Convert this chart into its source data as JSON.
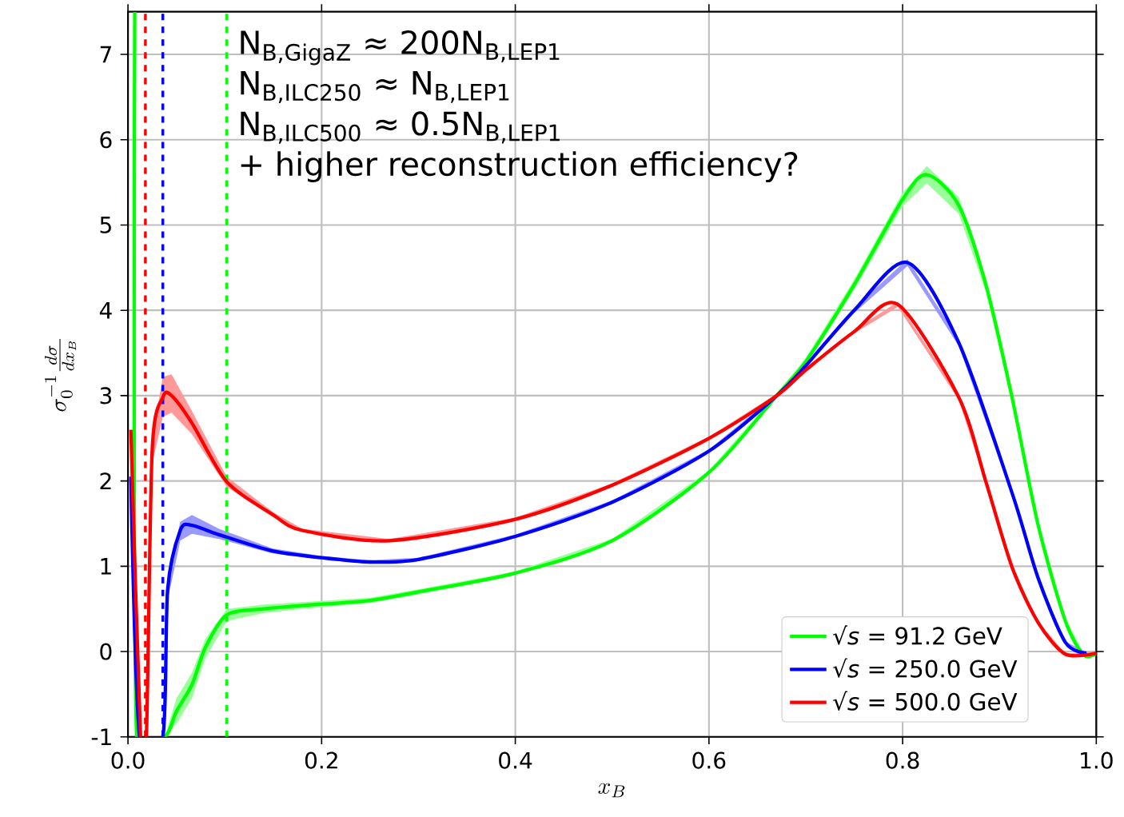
{
  "chart_data": {
    "type": "line",
    "xlabel": "x_B",
    "ylabel": "\\sigma_0^{-1}\\frac{d\\sigma}{dx_B}",
    "xlim": [
      0,
      1
    ],
    "ylim": [
      -1,
      7.5
    ],
    "xticks": [
      {
        "value": 0,
        "label": "0.0"
      },
      0.2,
      0.4,
      0.6,
      0.8,
      {
        "value": 1,
        "label": "1.0"
      }
    ],
    "yticks": [
      -1,
      0,
      1,
      2,
      3,
      4,
      5,
      6,
      7
    ],
    "grid": true,
    "legend": "bottom right",
    "line_style": "solid",
    "marker": "none",
    "annotations": [
      "N$_{B,GigaZ}$ ≈ 200N$_{B,LEP1}$",
      "N$_{B,ILC250}$ ≈ N$_{B,LEP1}$",
      "N$_{B,ILC500}$ ≈ 0.5N$_{B,LEP1}$",
      "+ higher reconstruction efficiency?"
    ],
    "ref_lines": [
      {
        "axis": "x",
        "value": 0.018,
        "color": "#ff0000",
        "line_style": "dashed"
      },
      {
        "axis": "x",
        "value": 0.036,
        "color": "#0000ff",
        "line_style": "dashed"
      },
      {
        "axis": "x",
        "value": 0.102,
        "color": "#00ff00",
        "line_style": "dashed"
      }
    ],
    "series": [
      {
        "name": "√*s* = 91.2 GeV",
        "color": "#00ff00",
        "x": [
          0.007,
          0.009,
          0.038,
          0.05,
          0.066,
          0.08,
          0.102,
          0.14,
          0.18,
          0.25,
          0.3,
          0.4,
          0.5,
          0.6,
          0.67,
          0.7,
          0.75,
          0.8,
          0.825,
          0.858,
          0.886,
          0.913,
          0.94,
          0.968,
          0.987,
          1.0
        ],
        "values": [
          7.5,
          -1,
          -1,
          -0.7,
          -0.39,
          0.05,
          0.43,
          0.5,
          0.54,
          0.6,
          0.7,
          0.92,
          1.3,
          2.1,
          3.0,
          3.4,
          4.3,
          5.3,
          5.59,
          5.23,
          4.3,
          2.98,
          1.48,
          0.36,
          -0.04,
          -0.02
        ],
        "lower": [
          7.5,
          -1,
          -1,
          -0.85,
          -0.55,
          -0.08,
          0.36,
          0.45,
          0.5,
          0.57,
          0.67,
          0.9,
          1.28,
          2.08,
          2.97,
          3.36,
          4.24,
          5.22,
          5.49,
          5.13,
          4.22,
          2.92,
          1.44,
          0.33,
          -0.06,
          -0.03
        ],
        "upper": [
          7.5,
          -1,
          -1,
          -0.55,
          -0.25,
          0.15,
          0.5,
          0.55,
          0.58,
          0.63,
          0.73,
          0.94,
          1.32,
          2.12,
          3.03,
          3.44,
          4.36,
          5.38,
          5.69,
          5.33,
          4.38,
          3.04,
          1.52,
          0.39,
          -0.02,
          -0.01
        ]
      },
      {
        "name": "√*s* = 250.0 GeV",
        "color": "#0000ff",
        "x": [
          0.003,
          0.012,
          0.036,
          0.041,
          0.054,
          0.066,
          0.094,
          0.149,
          0.2,
          0.25,
          0.3,
          0.4,
          0.5,
          0.6,
          0.67,
          0.7,
          0.75,
          0.805,
          0.858,
          0.913,
          0.94,
          0.968,
          0.99
        ],
        "values": [
          2.05,
          -1,
          -1,
          0.73,
          1.42,
          1.48,
          1.37,
          1.18,
          1.1,
          1.05,
          1.08,
          1.35,
          1.75,
          2.35,
          3.0,
          3.35,
          4.0,
          4.56,
          3.62,
          1.86,
          0.86,
          0.11,
          -0.02
        ],
        "lower": [
          2.05,
          -1,
          -1,
          0.6,
          1.3,
          1.38,
          1.32,
          1.15,
          1.08,
          1.03,
          1.06,
          1.33,
          1.73,
          2.33,
          2.98,
          3.33,
          3.97,
          4.52,
          3.58,
          1.83,
          0.84,
          0.1,
          -0.03
        ],
        "upper": [
          2.05,
          -1,
          -1,
          0.86,
          1.52,
          1.6,
          1.44,
          1.21,
          1.12,
          1.07,
          1.1,
          1.37,
          1.77,
          2.37,
          3.02,
          3.37,
          4.03,
          4.6,
          3.66,
          1.89,
          0.88,
          0.12,
          -0.01
        ]
      },
      {
        "name": "√*s* = 500.0 GeV",
        "color": "#ff0000",
        "x": [
          0.003,
          0.013,
          0.019,
          0.025,
          0.036,
          0.045,
          0.066,
          0.102,
          0.149,
          0.18,
          0.27,
          0.4,
          0.5,
          0.6,
          0.67,
          0.7,
          0.75,
          0.795,
          0.858,
          0.886,
          0.913,
          0.94,
          0.968,
          1.0
        ],
        "values": [
          2.6,
          -1,
          -1,
          2.36,
          2.98,
          3.0,
          2.68,
          1.99,
          1.61,
          1.42,
          1.3,
          1.55,
          1.95,
          2.5,
          3.0,
          3.3,
          3.75,
          4.07,
          2.98,
          1.99,
          0.99,
          0.34,
          -0.03,
          -0.02
        ],
        "lower": [
          2.6,
          -1,
          -1,
          2.2,
          2.75,
          2.8,
          2.55,
          1.93,
          1.58,
          1.4,
          1.28,
          1.53,
          1.93,
          2.48,
          2.98,
          3.28,
          3.73,
          4.04,
          2.95,
          1.96,
          0.97,
          0.33,
          -0.04,
          -0.03
        ],
        "upper": [
          2.6,
          -1,
          -1,
          2.5,
          3.22,
          3.25,
          2.82,
          2.05,
          1.64,
          1.44,
          1.32,
          1.57,
          1.97,
          2.52,
          3.02,
          3.32,
          3.77,
          4.1,
          3.01,
          2.02,
          1.01,
          0.35,
          -0.02,
          -0.01
        ]
      }
    ]
  }
}
